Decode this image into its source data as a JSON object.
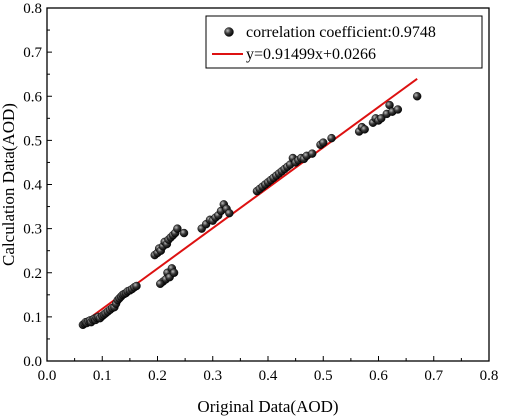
{
  "chart_data": {
    "type": "scatter",
    "xlabel": "Original Data(AOD)",
    "ylabel": "Calculation Data(AOD)",
    "xlim": [
      0.0,
      0.8
    ],
    "ylim": [
      0.0,
      0.8
    ],
    "xticks": [
      "0.0",
      "0.1",
      "0.2",
      "0.3",
      "0.4",
      "0.5",
      "0.6",
      "0.7",
      "0.8"
    ],
    "yticks": [
      "0.0",
      "0.1",
      "0.2",
      "0.3",
      "0.4",
      "0.5",
      "0.6",
      "0.7",
      "0.8"
    ],
    "grid": false,
    "legend_position": "top-right",
    "series": [
      {
        "name": "correlation coefficient:0.9748",
        "kind": "scatter",
        "color": "#111111",
        "points": [
          [
            0.065,
            0.082
          ],
          [
            0.068,
            0.085
          ],
          [
            0.07,
            0.088
          ],
          [
            0.072,
            0.086
          ],
          [
            0.075,
            0.09
          ],
          [
            0.078,
            0.092
          ],
          [
            0.08,
            0.088
          ],
          [
            0.083,
            0.094
          ],
          [
            0.086,
            0.096
          ],
          [
            0.088,
            0.093
          ],
          [
            0.09,
            0.098
          ],
          [
            0.093,
            0.1
          ],
          [
            0.096,
            0.097
          ],
          [
            0.1,
            0.102
          ],
          [
            0.103,
            0.105
          ],
          [
            0.106,
            0.108
          ],
          [
            0.11,
            0.112
          ],
          [
            0.114,
            0.116
          ],
          [
            0.118,
            0.12
          ],
          [
            0.122,
            0.122
          ],
          [
            0.125,
            0.13
          ],
          [
            0.128,
            0.138
          ],
          [
            0.131,
            0.142
          ],
          [
            0.134,
            0.146
          ],
          [
            0.137,
            0.15
          ],
          [
            0.14,
            0.152
          ],
          [
            0.143,
            0.154
          ],
          [
            0.146,
            0.158
          ],
          [
            0.15,
            0.16
          ],
          [
            0.154,
            0.163
          ],
          [
            0.158,
            0.167
          ],
          [
            0.162,
            0.17
          ],
          [
            0.195,
            0.24
          ],
          [
            0.2,
            0.245
          ],
          [
            0.203,
            0.255
          ],
          [
            0.206,
            0.25
          ],
          [
            0.21,
            0.26
          ],
          [
            0.213,
            0.27
          ],
          [
            0.217,
            0.265
          ],
          [
            0.22,
            0.275
          ],
          [
            0.224,
            0.28
          ],
          [
            0.228,
            0.285
          ],
          [
            0.232,
            0.29
          ],
          [
            0.236,
            0.3
          ],
          [
            0.248,
            0.29
          ],
          [
            0.21,
            0.18
          ],
          [
            0.215,
            0.185
          ],
          [
            0.218,
            0.2
          ],
          [
            0.222,
            0.19
          ],
          [
            0.226,
            0.21
          ],
          [
            0.23,
            0.2
          ],
          [
            0.205,
            0.175
          ],
          [
            0.28,
            0.3
          ],
          [
            0.288,
            0.31
          ],
          [
            0.295,
            0.32
          ],
          [
            0.3,
            0.318
          ],
          [
            0.305,
            0.325
          ],
          [
            0.31,
            0.33
          ],
          [
            0.315,
            0.34
          ],
          [
            0.32,
            0.355
          ],
          [
            0.325,
            0.345
          ],
          [
            0.33,
            0.335
          ],
          [
            0.38,
            0.385
          ],
          [
            0.385,
            0.39
          ],
          [
            0.39,
            0.395
          ],
          [
            0.395,
            0.4
          ],
          [
            0.4,
            0.405
          ],
          [
            0.405,
            0.41
          ],
          [
            0.41,
            0.415
          ],
          [
            0.415,
            0.42
          ],
          [
            0.42,
            0.425
          ],
          [
            0.425,
            0.43
          ],
          [
            0.43,
            0.435
          ],
          [
            0.435,
            0.44
          ],
          [
            0.44,
            0.445
          ],
          [
            0.445,
            0.46
          ],
          [
            0.45,
            0.45
          ],
          [
            0.455,
            0.455
          ],
          [
            0.46,
            0.46
          ],
          [
            0.465,
            0.458
          ],
          [
            0.47,
            0.465
          ],
          [
            0.48,
            0.47
          ],
          [
            0.495,
            0.49
          ],
          [
            0.5,
            0.495
          ],
          [
            0.515,
            0.505
          ],
          [
            0.565,
            0.52
          ],
          [
            0.57,
            0.53
          ],
          [
            0.575,
            0.525
          ],
          [
            0.59,
            0.54
          ],
          [
            0.595,
            0.55
          ],
          [
            0.6,
            0.545
          ],
          [
            0.605,
            0.55
          ],
          [
            0.615,
            0.56
          ],
          [
            0.62,
            0.58
          ],
          [
            0.625,
            0.565
          ],
          [
            0.635,
            0.57
          ],
          [
            0.67,
            0.6
          ]
        ]
      },
      {
        "name": "y=0.91499x+0.0266",
        "kind": "line",
        "color": "#dd1111",
        "slope": 0.91499,
        "intercept": 0.0266,
        "x_range": [
          0.065,
          0.67
        ]
      }
    ]
  }
}
